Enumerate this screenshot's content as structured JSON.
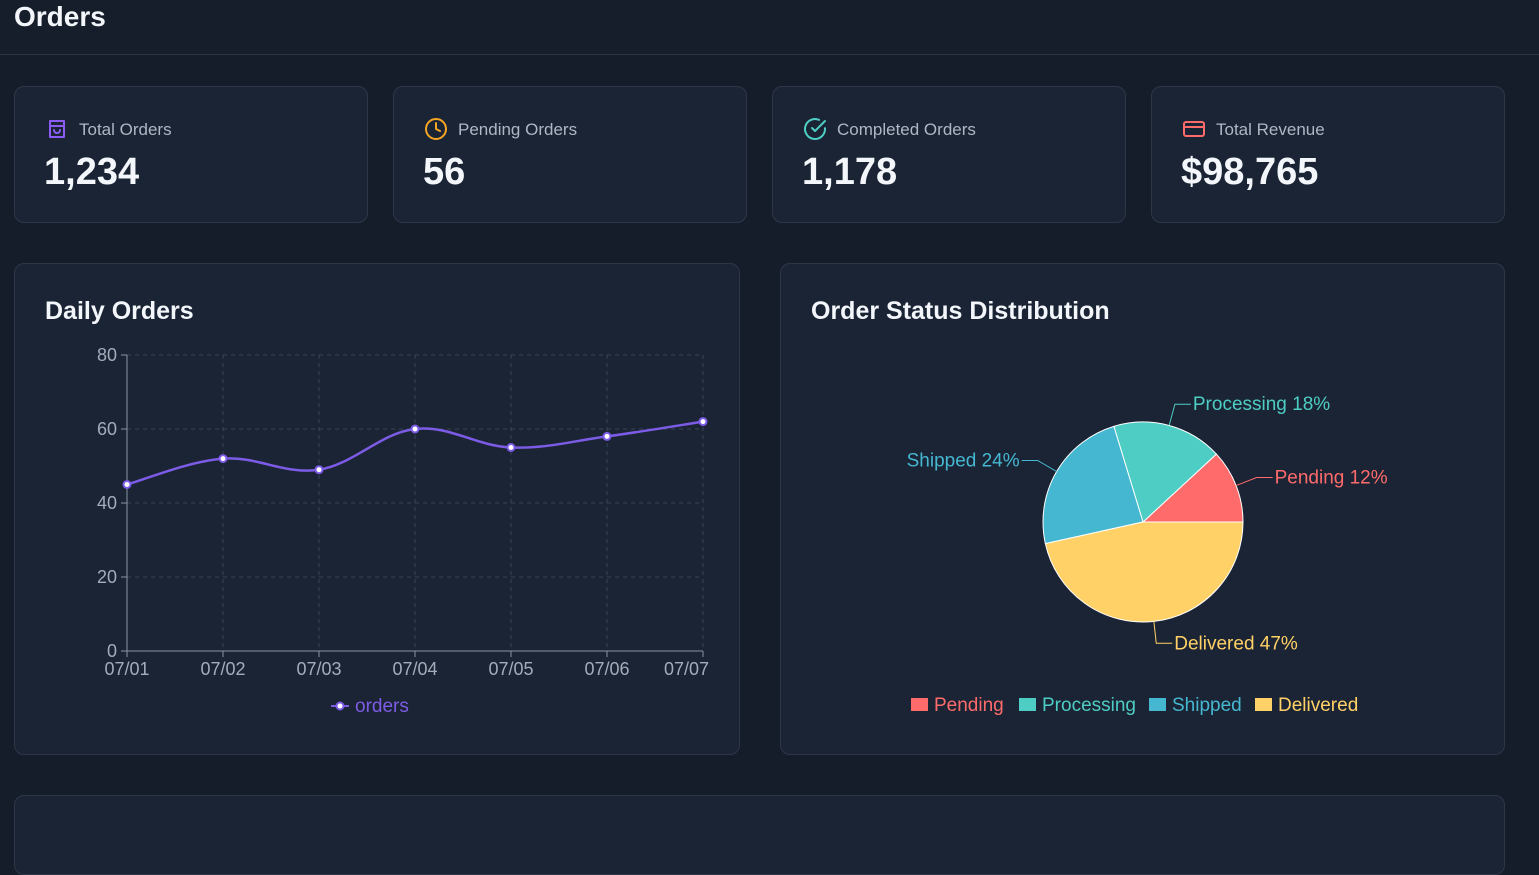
{
  "header": {
    "title": "Orders"
  },
  "stats": [
    {
      "label": "Total Orders",
      "value": "1,234",
      "icon": "shopping-bag-icon",
      "color": "#8b5cf6"
    },
    {
      "label": "Pending Orders",
      "value": "56",
      "icon": "clock-icon",
      "color": "#f5a524"
    },
    {
      "label": "Completed Orders",
      "value": "1,178",
      "icon": "check-circle-icon",
      "color": "#4ecdc4"
    },
    {
      "label": "Total Revenue",
      "value": "$98,765",
      "icon": "credit-card-icon",
      "color": "#ff6b6b"
    }
  ],
  "daily_orders": {
    "title": "Daily Orders"
  },
  "status_distribution": {
    "title": "Order Status Distribution"
  },
  "chart_data": [
    {
      "type": "line",
      "title": "Daily Orders",
      "x": [
        "07/01",
        "07/02",
        "07/03",
        "07/04",
        "07/05",
        "07/06",
        "07/07"
      ],
      "series": [
        {
          "name": "orders",
          "values": [
            45,
            52,
            49,
            60,
            55,
            58,
            62
          ],
          "color": "#7c5ce6"
        }
      ],
      "ylim": [
        0,
        80
      ],
      "yticks": [
        0,
        20,
        40,
        60,
        80
      ],
      "grid": true,
      "legend": "bottom-center"
    },
    {
      "type": "pie",
      "title": "Order Status Distribution",
      "slices": [
        {
          "name": "Pending",
          "value": 12,
          "label": "Pending 12%",
          "color": "#ff6b6b"
        },
        {
          "name": "Processing",
          "value": 18,
          "label": "Processing 18%",
          "color": "#4ecdc4"
        },
        {
          "name": "Shipped",
          "value": 24,
          "label": "Shipped 24%",
          "color": "#45b7d1"
        },
        {
          "name": "Delivered",
          "value": 47,
          "label": "Delivered 47%",
          "color": "#ffd166"
        }
      ],
      "legend": "bottom-center"
    }
  ]
}
